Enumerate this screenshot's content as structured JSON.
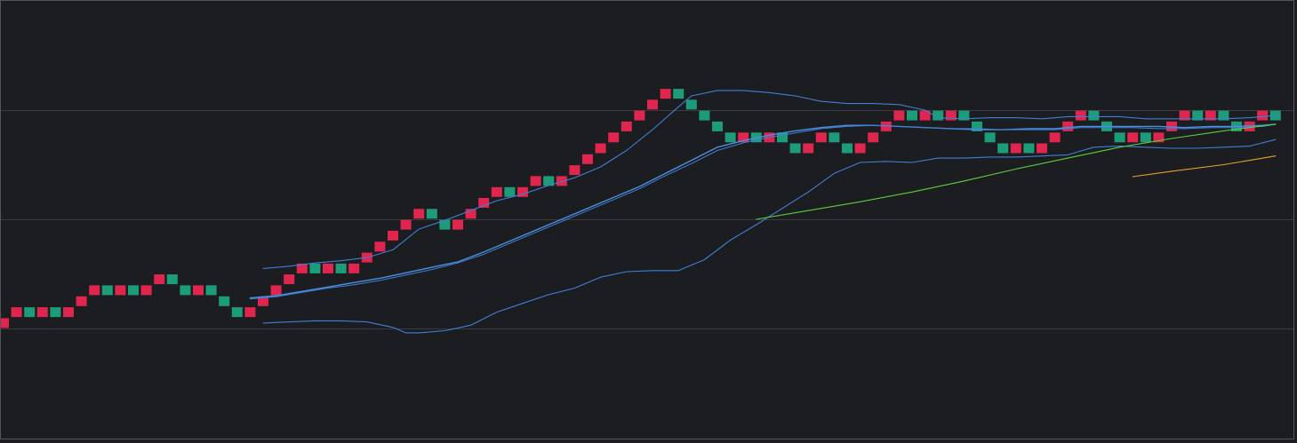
{
  "chart_data": {
    "type": "renko",
    "title": "",
    "xlabel": "",
    "ylabel": "",
    "grid": true,
    "legend": "none",
    "price_range": [
      0,
      32
    ],
    "brick_size": 1,
    "box_start": 0,
    "colors": {
      "background": "#1c1d21",
      "grid": "#3a3b40",
      "frame": "#55565b",
      "up": "#e0254f",
      "down": "#1c9c78",
      "basis": "#4a8fe0",
      "band": "#3f7fd6",
      "ma_green": "#5ccf3c",
      "ma_orange": "#e8a22a"
    },
    "gridlines": [
      10,
      20,
      30
    ],
    "bricks": [
      {
        "low": 10,
        "dir": "up"
      },
      {
        "low": 11,
        "dir": "up"
      },
      {
        "low": 11,
        "dir": "down"
      },
      {
        "low": 11,
        "dir": "up"
      },
      {
        "low": 11,
        "dir": "down"
      },
      {
        "low": 11,
        "dir": "up"
      },
      {
        "low": 12,
        "dir": "up"
      },
      {
        "low": 13,
        "dir": "up"
      },
      {
        "low": 13,
        "dir": "down"
      },
      {
        "low": 13,
        "dir": "up"
      },
      {
        "low": 13,
        "dir": "down"
      },
      {
        "low": 13,
        "dir": "up"
      },
      {
        "low": 14,
        "dir": "up"
      },
      {
        "low": 14,
        "dir": "down"
      },
      {
        "low": 13,
        "dir": "down"
      },
      {
        "low": 13,
        "dir": "up"
      },
      {
        "low": 13,
        "dir": "down"
      },
      {
        "low": 12,
        "dir": "down"
      },
      {
        "low": 11,
        "dir": "down"
      },
      {
        "low": 11,
        "dir": "up"
      },
      {
        "low": 12,
        "dir": "up"
      },
      {
        "low": 13,
        "dir": "up"
      },
      {
        "low": 14,
        "dir": "up"
      },
      {
        "low": 15,
        "dir": "up"
      },
      {
        "low": 15,
        "dir": "down"
      },
      {
        "low": 15,
        "dir": "up"
      },
      {
        "low": 15,
        "dir": "down"
      },
      {
        "low": 15,
        "dir": "up"
      },
      {
        "low": 16,
        "dir": "up"
      },
      {
        "low": 17,
        "dir": "up"
      },
      {
        "low": 18,
        "dir": "up"
      },
      {
        "low": 19,
        "dir": "up"
      },
      {
        "low": 20,
        "dir": "up"
      },
      {
        "low": 20,
        "dir": "down"
      },
      {
        "low": 19,
        "dir": "down"
      },
      {
        "low": 19,
        "dir": "up"
      },
      {
        "low": 20,
        "dir": "up"
      },
      {
        "low": 21,
        "dir": "up"
      },
      {
        "low": 22,
        "dir": "up"
      },
      {
        "low": 22,
        "dir": "down"
      },
      {
        "low": 22,
        "dir": "up"
      },
      {
        "low": 23,
        "dir": "up"
      },
      {
        "low": 23,
        "dir": "down"
      },
      {
        "low": 23,
        "dir": "up"
      },
      {
        "low": 24,
        "dir": "up"
      },
      {
        "low": 25,
        "dir": "up"
      },
      {
        "low": 26,
        "dir": "up"
      },
      {
        "low": 27,
        "dir": "up"
      },
      {
        "low": 28,
        "dir": "up"
      },
      {
        "low": 29,
        "dir": "up"
      },
      {
        "low": 30,
        "dir": "up"
      },
      {
        "low": 31,
        "dir": "up"
      },
      {
        "low": 31,
        "dir": "down"
      },
      {
        "low": 30,
        "dir": "down"
      },
      {
        "low": 29,
        "dir": "down"
      },
      {
        "low": 28,
        "dir": "down"
      },
      {
        "low": 27,
        "dir": "down"
      },
      {
        "low": 27,
        "dir": "up"
      },
      {
        "low": 27,
        "dir": "down"
      },
      {
        "low": 27,
        "dir": "up"
      },
      {
        "low": 27,
        "dir": "down"
      },
      {
        "low": 26,
        "dir": "down"
      },
      {
        "low": 26,
        "dir": "up"
      },
      {
        "low": 27,
        "dir": "up"
      },
      {
        "low": 27,
        "dir": "down"
      },
      {
        "low": 26,
        "dir": "down"
      },
      {
        "low": 26,
        "dir": "up"
      },
      {
        "low": 27,
        "dir": "up"
      },
      {
        "low": 28,
        "dir": "up"
      },
      {
        "low": 29,
        "dir": "up"
      },
      {
        "low": 29,
        "dir": "down"
      },
      {
        "low": 29,
        "dir": "up"
      },
      {
        "low": 29,
        "dir": "down"
      },
      {
        "low": 29,
        "dir": "up"
      },
      {
        "low": 29,
        "dir": "down"
      },
      {
        "low": 28,
        "dir": "down"
      },
      {
        "low": 27,
        "dir": "down"
      },
      {
        "low": 26,
        "dir": "down"
      },
      {
        "low": 26,
        "dir": "up"
      },
      {
        "low": 26,
        "dir": "down"
      },
      {
        "low": 26,
        "dir": "up"
      },
      {
        "low": 27,
        "dir": "up"
      },
      {
        "low": 28,
        "dir": "up"
      },
      {
        "low": 29,
        "dir": "up"
      },
      {
        "low": 29,
        "dir": "down"
      },
      {
        "low": 28,
        "dir": "down"
      },
      {
        "low": 27,
        "dir": "down"
      },
      {
        "low": 27,
        "dir": "up"
      },
      {
        "low": 27,
        "dir": "down"
      },
      {
        "low": 27,
        "dir": "up"
      },
      {
        "low": 28,
        "dir": "up"
      },
      {
        "low": 29,
        "dir": "up"
      },
      {
        "low": 29,
        "dir": "down"
      },
      {
        "low": 29,
        "dir": "up"
      },
      {
        "low": 29,
        "dir": "down"
      },
      {
        "low": 28,
        "dir": "down"
      },
      {
        "low": 28,
        "dir": "up"
      },
      {
        "low": 29,
        "dir": "up"
      },
      {
        "low": 29,
        "dir": "down"
      }
    ],
    "series": [
      {
        "key": "bb_upper",
        "style": "band",
        "points": [
          [
            20,
            15.5
          ],
          [
            22,
            15.7
          ],
          [
            24,
            16
          ],
          [
            26,
            16.2
          ],
          [
            28,
            16.5
          ],
          [
            30,
            17.2
          ],
          [
            32,
            19.1
          ],
          [
            34,
            19.9
          ],
          [
            36,
            20.8
          ],
          [
            38,
            21.7
          ],
          [
            40,
            22.3
          ],
          [
            42,
            23.1
          ],
          [
            44,
            23.8
          ],
          [
            46,
            24.8
          ],
          [
            48,
            26.3
          ],
          [
            50,
            28.2
          ],
          [
            52,
            30.3
          ],
          [
            53,
            31.3
          ],
          [
            55,
            31.8
          ],
          [
            57,
            31.8
          ],
          [
            59,
            31.6
          ],
          [
            61,
            31.3
          ],
          [
            63,
            30.8
          ],
          [
            65,
            30.6
          ],
          [
            67,
            30.6
          ],
          [
            69,
            30.5
          ],
          [
            71,
            30
          ],
          [
            72,
            29.3
          ],
          [
            74,
            29.2
          ],
          [
            76,
            29.3
          ],
          [
            78,
            29.3
          ],
          [
            80,
            29.2
          ],
          [
            82,
            29.4
          ],
          [
            84,
            29.4
          ],
          [
            86,
            29.4
          ],
          [
            88,
            29.2
          ],
          [
            90,
            29.2
          ],
          [
            92,
            29.2
          ],
          [
            94,
            29.2
          ],
          [
            96,
            29.3
          ],
          [
            98,
            29.5
          ]
        ]
      },
      {
        "key": "bb_lower",
        "style": "band",
        "points": [
          [
            20,
            10.5
          ],
          [
            22,
            10.6
          ],
          [
            24,
            10.7
          ],
          [
            26,
            10.7
          ],
          [
            28,
            10.6
          ],
          [
            30,
            10.1
          ],
          [
            31,
            9.6
          ],
          [
            32,
            9.6
          ],
          [
            34,
            9.8
          ],
          [
            36,
            10.3
          ],
          [
            38,
            11.5
          ],
          [
            40,
            12.3
          ],
          [
            42,
            13.1
          ],
          [
            44,
            13.7
          ],
          [
            46,
            14.7
          ],
          [
            48,
            15.2
          ],
          [
            50,
            15.3
          ],
          [
            52,
            15.3
          ],
          [
            54,
            16.3
          ],
          [
            56,
            18.1
          ],
          [
            58,
            19.5
          ],
          [
            60,
            21
          ],
          [
            62,
            22.5
          ],
          [
            64,
            24.2
          ],
          [
            66,
            25.2
          ],
          [
            68,
            25.3
          ],
          [
            70,
            25.2
          ],
          [
            72,
            25.6
          ],
          [
            74,
            25.6
          ],
          [
            76,
            25.7
          ],
          [
            78,
            25.7
          ],
          [
            80,
            25.8
          ],
          [
            82,
            25.9
          ],
          [
            84,
            26.6
          ],
          [
            86,
            26.7
          ],
          [
            88,
            26.6
          ],
          [
            90,
            26.5
          ],
          [
            92,
            26.5
          ],
          [
            94,
            26.6
          ],
          [
            96,
            26.7
          ],
          [
            98,
            27.3
          ]
        ]
      },
      {
        "key": "bb_basis",
        "style": "basis",
        "points": [
          [
            19,
            12.8
          ],
          [
            21,
            13
          ],
          [
            23,
            13.4
          ],
          [
            25,
            13.8
          ],
          [
            27,
            14.2
          ],
          [
            29,
            14.6
          ],
          [
            31,
            15.1
          ],
          [
            33,
            15.6
          ],
          [
            35,
            16.1
          ],
          [
            37,
            17
          ],
          [
            39,
            18
          ],
          [
            41,
            19
          ],
          [
            43,
            20
          ],
          [
            45,
            21
          ],
          [
            47,
            22
          ],
          [
            49,
            23
          ],
          [
            51,
            24.2
          ],
          [
            53,
            25.4
          ],
          [
            55,
            26.6
          ],
          [
            57,
            27.2
          ],
          [
            59,
            27.7
          ],
          [
            61,
            28.1
          ],
          [
            63,
            28.4
          ],
          [
            65,
            28.6
          ],
          [
            67,
            28.6
          ],
          [
            69,
            28.5
          ],
          [
            71,
            28.4
          ],
          [
            73,
            28.3
          ],
          [
            75,
            28.2
          ],
          [
            77,
            28.2
          ],
          [
            79,
            28.3
          ],
          [
            81,
            28.3
          ],
          [
            83,
            28.5
          ],
          [
            85,
            28.5
          ],
          [
            87,
            28.5
          ],
          [
            89,
            28.5
          ],
          [
            91,
            28.4
          ],
          [
            93,
            28.5
          ],
          [
            95,
            28.5
          ],
          [
            97,
            28.6
          ],
          [
            98,
            28.7
          ]
        ]
      },
      {
        "key": "ma_fast",
        "style": "ma_fast",
        "points": [
          [
            19,
            12.7
          ],
          [
            21,
            12.9
          ],
          [
            23,
            13.3
          ],
          [
            25,
            13.7
          ],
          [
            27,
            14
          ],
          [
            29,
            14.4
          ],
          [
            31,
            14.9
          ],
          [
            33,
            15.4
          ],
          [
            35,
            16
          ],
          [
            37,
            16.8
          ],
          [
            39,
            17.8
          ],
          [
            41,
            18.8
          ],
          [
            43,
            19.8
          ],
          [
            45,
            20.8
          ],
          [
            47,
            21.8
          ],
          [
            49,
            22.8
          ],
          [
            51,
            24
          ],
          [
            53,
            25.1
          ],
          [
            55,
            26.3
          ],
          [
            57,
            27
          ],
          [
            59,
            27.5
          ],
          [
            61,
            27.9
          ],
          [
            63,
            28.3
          ],
          [
            65,
            28.5
          ],
          [
            67,
            28.6
          ],
          [
            69,
            28.5
          ],
          [
            71,
            28.4
          ],
          [
            73,
            28.3
          ],
          [
            75,
            28.3
          ],
          [
            77,
            28.2
          ],
          [
            79,
            28.2
          ],
          [
            81,
            28.2
          ],
          [
            83,
            28.4
          ],
          [
            85,
            28.4
          ],
          [
            87,
            28.4
          ],
          [
            89,
            28.3
          ],
          [
            91,
            28.3
          ],
          [
            93,
            28.4
          ],
          [
            95,
            28.4
          ],
          [
            97,
            28.5
          ],
          [
            98,
            28.7
          ]
        ]
      },
      {
        "key": "ma_green",
        "style": "ma_green",
        "points": [
          [
            58,
            20
          ],
          [
            62,
            20.8
          ],
          [
            66,
            21.6
          ],
          [
            70,
            22.5
          ],
          [
            74,
            23.5
          ],
          [
            78,
            24.6
          ],
          [
            82,
            25.6
          ],
          [
            86,
            26.6
          ],
          [
            90,
            27.4
          ],
          [
            94,
            28.1
          ],
          [
            98,
            28.7
          ]
        ]
      },
      {
        "key": "ma_orange",
        "style": "ma_orange",
        "points": [
          [
            87,
            23.9
          ],
          [
            90,
            24.4
          ],
          [
            94,
            25
          ],
          [
            98,
            25.8
          ]
        ]
      }
    ]
  }
}
